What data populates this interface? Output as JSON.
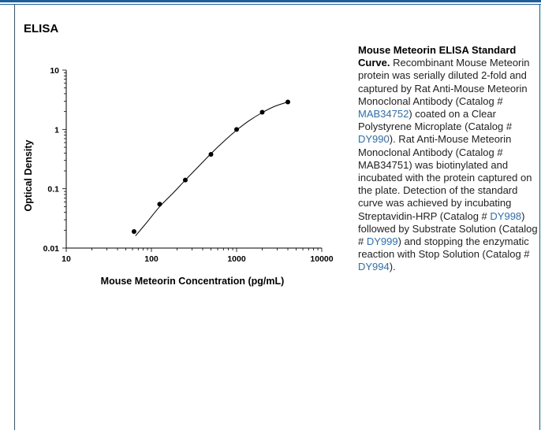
{
  "section_title": "ELISA",
  "chart_data": {
    "type": "scatter",
    "xscale": "log",
    "yscale": "log",
    "xlim": [
      10,
      10000
    ],
    "ylim": [
      0.01,
      10
    ],
    "xlabel": "Mouse Meteorin Concentration (pg/mL)",
    "ylabel": "Optical Density",
    "x_ticks": [
      "10",
      "100",
      "1000",
      "10000"
    ],
    "y_ticks": [
      "0.01",
      "0.1",
      "1",
      "10"
    ],
    "points": [
      {
        "x": 62.5,
        "y": 0.019
      },
      {
        "x": 125,
        "y": 0.055
      },
      {
        "x": 250,
        "y": 0.14
      },
      {
        "x": 500,
        "y": 0.38
      },
      {
        "x": 1000,
        "y": 1.0
      },
      {
        "x": 2000,
        "y": 1.95
      },
      {
        "x": 4000,
        "y": 2.9
      }
    ],
    "curve": [
      {
        "x": 65,
        "y": 0.016
      },
      {
        "x": 90,
        "y": 0.028
      },
      {
        "x": 125,
        "y": 0.05
      },
      {
        "x": 180,
        "y": 0.085
      },
      {
        "x": 250,
        "y": 0.14
      },
      {
        "x": 350,
        "y": 0.23
      },
      {
        "x": 500,
        "y": 0.39
      },
      {
        "x": 700,
        "y": 0.62
      },
      {
        "x": 1000,
        "y": 0.97
      },
      {
        "x": 1400,
        "y": 1.4
      },
      {
        "x": 2000,
        "y": 1.92
      },
      {
        "x": 2800,
        "y": 2.45
      },
      {
        "x": 4000,
        "y": 2.9
      }
    ],
    "grid": false
  },
  "caption": {
    "title": "Mouse Meteorin ELISA Standard Curve.",
    "parts": [
      " Recombinant Mouse Meteorin protein was serially diluted 2-fold and captured by Rat Anti-Mouse Meteorin Monoclonal Antibody (Catalog # ",
      "MAB34752",
      ") coated on a Clear Polystyrene Microplate (Catalog # ",
      "DY990",
      "). Rat Anti-Mouse Meteorin Monoclonal Antibody (Catalog # MAB34751) was biotinylated and incubated with the protein captured on the plate. Detection of the standard curve was achieved by incubating Streptavidin-HRP (Catalog # ",
      "DY998",
      ") followed by Substrate Solution (Catalog # ",
      "DY999",
      ") and stopping the enzymatic reaction with Stop Solution (Catalog # ",
      "DY994",
      ")."
    ]
  },
  "colors": {
    "accent": "#1f5f99",
    "link": "#2a6fb8"
  }
}
